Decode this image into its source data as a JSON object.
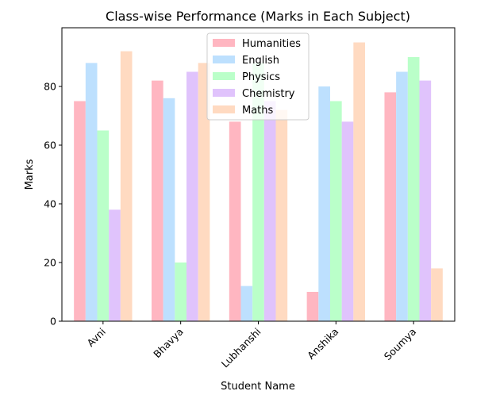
{
  "chart_data": {
    "type": "bar",
    "title": "Class-wise Performance (Marks in Each Subject)",
    "xlabel": "Student Name",
    "ylabel": "Marks",
    "categories": [
      "Avni",
      "Bhavya",
      "Lubhanshi",
      "Anshika",
      "Soumya"
    ],
    "ylim": [
      0,
      100
    ],
    "yticks": [
      0,
      20,
      40,
      60,
      80
    ],
    "series": [
      {
        "name": "Humanities",
        "color": "#ffb6c1",
        "values": [
          75,
          82,
          68,
          10,
          78
        ]
      },
      {
        "name": "English",
        "color": "#bde0fe",
        "values": [
          88,
          76,
          12,
          80,
          85
        ]
      },
      {
        "name": "Physics",
        "color": "#baffc9",
        "values": [
          65,
          20,
          88,
          75,
          90
        ]
      },
      {
        "name": "Chemistry",
        "color": "#e0c3fc",
        "values": [
          38,
          85,
          75,
          68,
          82
        ]
      },
      {
        "name": "Maths",
        "color": "#ffdac1",
        "values": [
          92,
          88,
          72,
          95,
          18
        ]
      }
    ],
    "legend_position": "top-center",
    "grid": false,
    "xtick_rotation": 45
  }
}
